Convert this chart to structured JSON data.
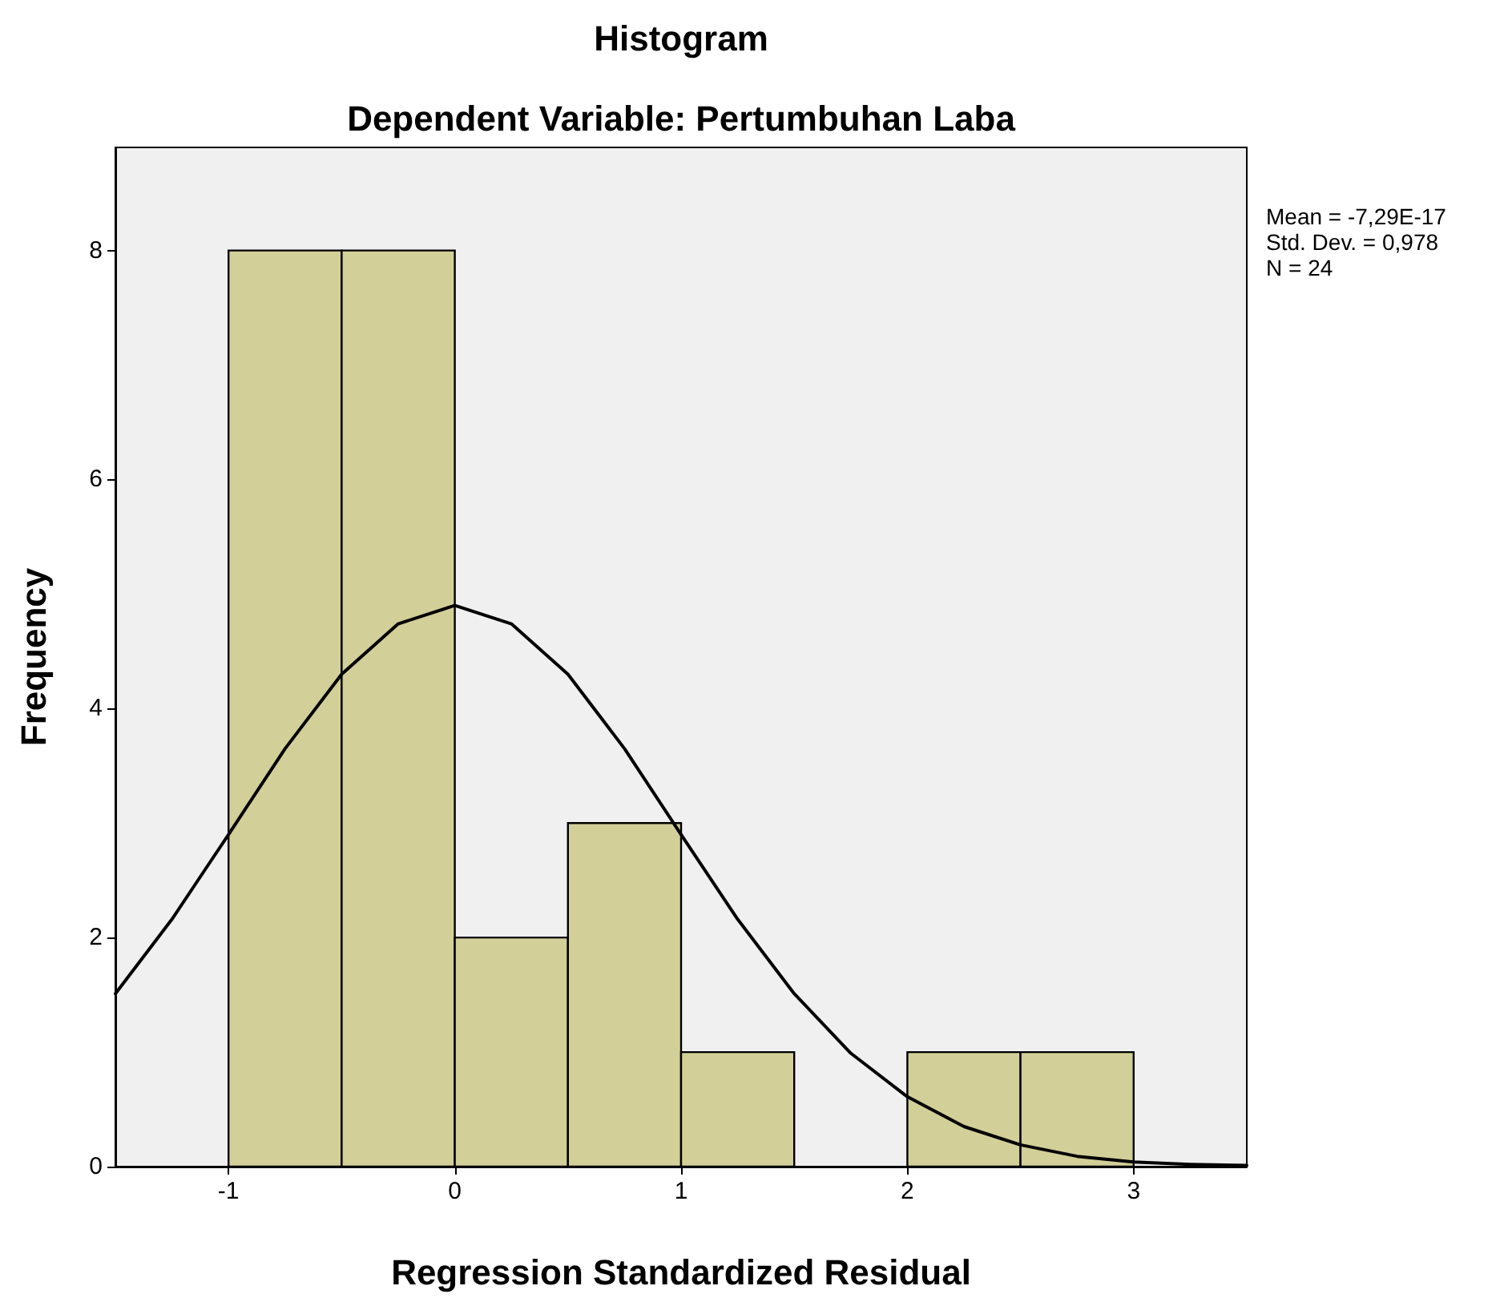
{
  "chart_data": {
    "type": "histogram",
    "title": "Histogram",
    "subtitle": "Dependent Variable: Pertumbuhan Laba",
    "xlabel": "Regression Standardized Residual",
    "ylabel": "Frequency",
    "series": [
      {
        "color": "#d3cf98",
        "bins": [
          -1,
          -0.5,
          0,
          0.5,
          1,
          1.5,
          2,
          2.5,
          3
        ],
        "values": [
          8,
          8,
          2,
          3,
          1,
          0,
          1,
          1
        ]
      },
      {
        "type": "line",
        "color": "#000000",
        "marker": "none",
        "x": [
          -1.5,
          -1.25,
          -1,
          -0.75,
          -0.5,
          -0.25,
          0,
          0.25,
          0.5,
          0.75,
          1,
          1.25,
          1.5,
          1.75,
          2,
          2.25,
          2.5,
          2.75,
          3,
          3.25,
          3.5
        ],
        "values": [
          1.51,
          2.16,
          2.9,
          3.65,
          4.3,
          4.74,
          4.9,
          4.74,
          4.3,
          3.65,
          2.9,
          2.16,
          1.51,
          0.99,
          0.61,
          0.35,
          0.19,
          0.09,
          0.04,
          0.02,
          0.01
        ]
      }
    ],
    "xlim": [
      -1.5,
      3.5
    ],
    "xticks": [
      -1,
      0,
      1,
      2,
      3
    ],
    "ylim": [
      0,
      8.9
    ],
    "yticks": [
      0,
      2,
      4,
      6,
      8
    ],
    "annotations": [
      "Mean = -7,29E-17",
      "Std. Dev. = 0,978",
      "N = 24"
    ]
  }
}
